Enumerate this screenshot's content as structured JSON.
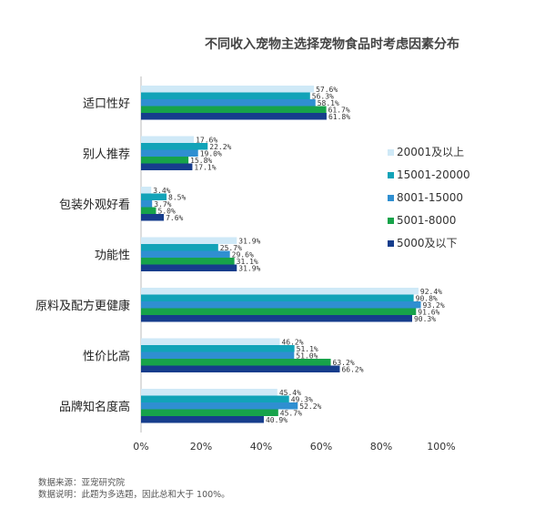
{
  "chart_data": {
    "type": "bar",
    "orientation": "horizontal",
    "title": "不同收入宠物主选择宠物食品时考虑因素分布",
    "categories": [
      "适口性好",
      "别人推荐",
      "包装外观好看",
      "功能性",
      "原料及配方更健康",
      "性价比高",
      "品牌知名度高"
    ],
    "series": [
      {
        "name": "20001及以上",
        "color": "#cfe9f7",
        "values": [
          57.6,
          17.6,
          3.4,
          31.9,
          92.4,
          46.2,
          45.4
        ]
      },
      {
        "name": "15001-20000",
        "color": "#12a3b8",
        "values": [
          56.3,
          22.2,
          8.5,
          25.7,
          90.8,
          51.1,
          49.3
        ]
      },
      {
        "name": "8001-15000",
        "color": "#2f8fd1",
        "values": [
          58.1,
          19.0,
          3.7,
          29.6,
          93.2,
          51.0,
          52.2
        ]
      },
      {
        "name": "5001-8000",
        "color": "#17a34a",
        "values": [
          61.7,
          15.8,
          5.0,
          31.1,
          91.6,
          63.2,
          45.7
        ]
      },
      {
        "name": "5000及以下",
        "color": "#163d8c",
        "values": [
          61.8,
          17.1,
          7.6,
          31.9,
          90.3,
          66.2,
          40.9
        ]
      }
    ],
    "value_labels": [
      [
        "57.6%",
        "56.3%",
        "58.1%",
        "61.7%",
        "61.8%"
      ],
      [
        "17.6%",
        "22.2%",
        "19.0%",
        "15.8%",
        "17.1%"
      ],
      [
        "3.4%",
        "8.5%",
        "3.7%",
        "5.0%",
        "7.6%"
      ],
      [
        "31.9%",
        "25.7%",
        "29.6%",
        "31.1%",
        "31.9%"
      ],
      [
        "92.4%",
        "90.8%",
        "93.2%",
        "91.6%",
        "90.3%"
      ],
      [
        "46.2%",
        "51.1%",
        "51.0%",
        "63.2%",
        "66.2%"
      ],
      [
        "45.4%",
        "49.3%",
        "52.2%",
        "45.7%",
        "40.9%"
      ]
    ],
    "xlim": [
      0,
      100
    ],
    "x_ticks": [
      "0%",
      "20%",
      "40%",
      "60%",
      "80%",
      "100%"
    ],
    "legend_position": "right",
    "grid": false
  },
  "footer": {
    "source": "数据来源：亚宠研究院",
    "note": "数据说明：此题为多选题，因此总和大于 100%。"
  }
}
